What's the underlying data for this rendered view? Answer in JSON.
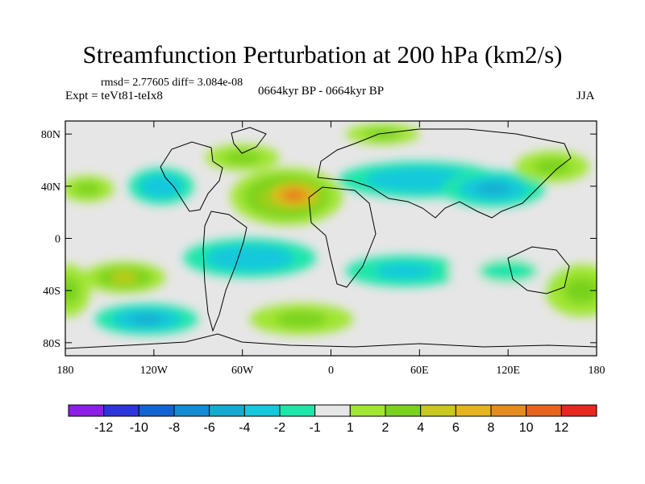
{
  "title": "Streamfunction Perturbation at 200 hPa (km2/s)",
  "stats_line": "rmsd= 2.77605 diff= 3.084e-08",
  "experiment": "Expt = teVt81-teIx8",
  "period": "0664kyr BP - 0664kyr BP",
  "season": "JJA",
  "axes": {
    "lat_ticks": [
      "80N",
      "40N",
      "0",
      "40S",
      "80S"
    ],
    "lon_ticks": [
      "180",
      "120W",
      "60W",
      "0",
      "60E",
      "120E",
      "180"
    ]
  },
  "colorbar": {
    "colors": [
      "#8c1ee6",
      "#2d35dc",
      "#1264d2",
      "#138cd2",
      "#14aad2",
      "#15c8dc",
      "#1ee6aa",
      "#e6e6e6",
      "#a0e632",
      "#78d21e",
      "#c8c81e",
      "#e6b41e",
      "#e68c1e",
      "#e6641e",
      "#e6281e"
    ],
    "labels": [
      "-12",
      "-10",
      "-8",
      "-6",
      "-4",
      "-2",
      "-1",
      "1",
      "2",
      "4",
      "6",
      "8",
      "10",
      "12"
    ]
  },
  "field_blobs": [
    {
      "lon": -30,
      "lat": 32,
      "rx": 38,
      "ry": 22,
      "value": 7
    },
    {
      "lon": -25,
      "lat": 33,
      "rx": 22,
      "ry": 12,
      "value": 11
    },
    {
      "lon": -115,
      "lat": 40,
      "rx": 22,
      "ry": 14,
      "value": -4
    },
    {
      "lon": -60,
      "lat": 62,
      "rx": 25,
      "ry": 10,
      "value": 2
    },
    {
      "lon": 35,
      "lat": 80,
      "rx": 25,
      "ry": 8,
      "value": 3
    },
    {
      "lon": 60,
      "lat": 45,
      "rx": 55,
      "ry": 14,
      "value": -4
    },
    {
      "lon": 110,
      "lat": 38,
      "rx": 35,
      "ry": 14,
      "value": -6
    },
    {
      "lon": 150,
      "lat": 55,
      "rx": 25,
      "ry": 12,
      "value": 2
    },
    {
      "lon": -165,
      "lat": 38,
      "rx": 18,
      "ry": 10,
      "value": 2
    },
    {
      "lon": -55,
      "lat": -15,
      "rx": 45,
      "ry": 15,
      "value": -4
    },
    {
      "lon": 50,
      "lat": -25,
      "rx": 40,
      "ry": 12,
      "value": -3
    },
    {
      "lon": -140,
      "lat": -30,
      "rx": 28,
      "ry": 12,
      "value": 5
    },
    {
      "lon": -125,
      "lat": -62,
      "rx": 35,
      "ry": 12,
      "value": -6
    },
    {
      "lon": -20,
      "lat": -62,
      "rx": 35,
      "ry": 12,
      "value": 3
    },
    {
      "lon": 120,
      "lat": -25,
      "rx": 40,
      "ry": 18,
      "value": -2
    },
    {
      "lon": 170,
      "lat": -40,
      "rx": 25,
      "ry": 20,
      "value": 3
    },
    {
      "lon": -178,
      "lat": -40,
      "rx": 15,
      "ry": 20,
      "value": 3
    }
  ]
}
